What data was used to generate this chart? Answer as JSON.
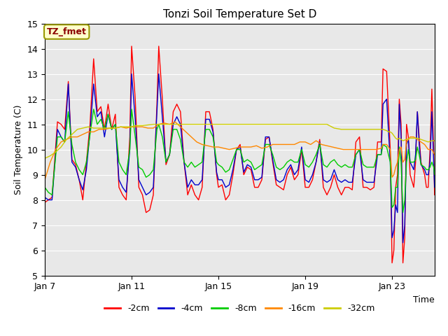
{
  "title": "Tonzi Soil Temperature Set D",
  "xlabel": "Time",
  "ylabel": "Soil Temperature (C)",
  "ylim": [
    5.0,
    15.0
  ],
  "yticks": [
    5.0,
    6.0,
    7.0,
    8.0,
    9.0,
    10.0,
    11.0,
    12.0,
    13.0,
    14.0,
    15.0
  ],
  "xtick_labels": [
    "Jan 7",
    "Jan 11",
    "Jan 15",
    "Jan 19",
    "Jan 23"
  ],
  "xtick_positions": [
    0,
    96,
    192,
    288,
    384
  ],
  "annotation_text": "TZ_fmet",
  "annotation_color": "#8b0000",
  "annotation_bg": "#ffffcc",
  "annotation_edge": "#999900",
  "bg_color": "#e8e8e8",
  "legend_labels": [
    "-2cm",
    "-4cm",
    "-8cm",
    "-16cm",
    "-32cm"
  ],
  "line_colors": [
    "#ff0000",
    "#0000cc",
    "#00cc00",
    "#ff8800",
    "#cccc00"
  ],
  "n_points": 432,
  "title_fontsize": 11,
  "axis_fontsize": 9,
  "tick_fontsize": 9
}
